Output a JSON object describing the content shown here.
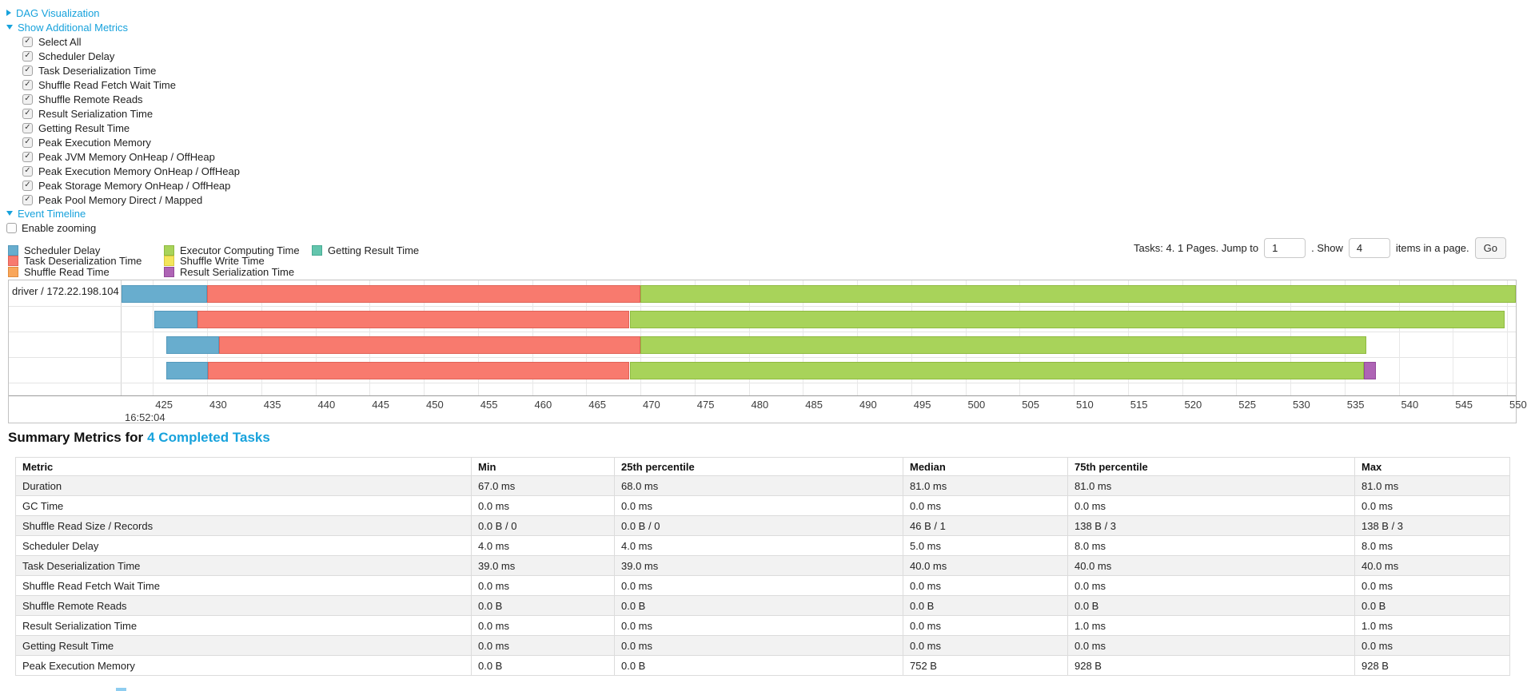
{
  "colors": {
    "link": "#17a2dc",
    "segment": {
      "scheduler_delay": {
        "fill": "#68adce",
        "border": "#5399bc"
      },
      "task_deserialization": {
        "fill": "#f87a6e",
        "border": "#e06257"
      },
      "shuffle_read": {
        "fill": "#f9a65a",
        "border": "#e08c3e"
      },
      "executor_computing": {
        "fill": "#a8d35a",
        "border": "#8fba40"
      },
      "shuffle_write": {
        "fill": "#f3e55c",
        "border": "#d8c93f"
      },
      "result_serialization": {
        "fill": "#ae64b5",
        "border": "#93499a"
      },
      "getting_result": {
        "fill": "#63c5ad",
        "border": "#47ab92"
      }
    }
  },
  "top": {
    "dag": {
      "label": "DAG Visualization",
      "state": "collapsed"
    },
    "additional_metrics": {
      "label": "Show Additional Metrics",
      "state": "expanded"
    },
    "metric_checkboxes": [
      {
        "label": "Select All",
        "checked": true
      },
      {
        "label": "Scheduler Delay",
        "checked": true
      },
      {
        "label": "Task Deserialization Time",
        "checked": true
      },
      {
        "label": "Shuffle Read Fetch Wait Time",
        "checked": true
      },
      {
        "label": "Shuffle Remote Reads",
        "checked": true
      },
      {
        "label": "Result Serialization Time",
        "checked": true
      },
      {
        "label": "Getting Result Time",
        "checked": true
      },
      {
        "label": "Peak Execution Memory",
        "checked": true
      },
      {
        "label": "Peak JVM Memory OnHeap / OffHeap",
        "checked": true
      },
      {
        "label": "Peak Execution Memory OnHeap / OffHeap",
        "checked": true
      },
      {
        "label": "Peak Storage Memory OnHeap / OffHeap",
        "checked": true
      },
      {
        "label": "Peak Pool Memory Direct / Mapped",
        "checked": true
      }
    ],
    "event_timeline": {
      "label": "Event Timeline",
      "state": "expanded"
    },
    "enable_zooming": {
      "label": "Enable zooming",
      "checked": false
    }
  },
  "legend": {
    "columns": [
      [
        {
          "key": "scheduler_delay",
          "label": "Scheduler Delay"
        },
        {
          "key": "task_deserialization",
          "label": "Task Deserialization Time"
        },
        {
          "key": "shuffle_read",
          "label": "Shuffle Read Time"
        }
      ],
      [
        {
          "key": "executor_computing",
          "label": "Executor Computing Time"
        },
        {
          "key": "shuffle_write",
          "label": "Shuffle Write Time"
        },
        {
          "key": "result_serialization",
          "label": "Result Serialization Time"
        }
      ],
      [
        {
          "key": "getting_result",
          "label": "Getting Result Time"
        }
      ]
    ]
  },
  "pagination": {
    "summary": "Tasks: 4. 1 Pages. Jump to",
    "jump_value": "1",
    "between": ". Show",
    "page_size_value": "4",
    "suffix": "items in a page.",
    "go": "Go"
  },
  "chart_data": {
    "type": "timeline",
    "group_label": "driver / 172.22.198.104",
    "time_of_day_label": "16:52:04",
    "axis": {
      "min": 422.1,
      "max": 550.8,
      "tick_start": 425,
      "tick_step": 5,
      "tick_end": 550,
      "unit": "ms"
    },
    "tasks": [
      {
        "segments": [
          {
            "type": "scheduler_delay",
            "start": 422.1,
            "end": 430.0
          },
          {
            "type": "task_deserialization",
            "start": 430.0,
            "end": 470.0
          },
          {
            "type": "executor_computing",
            "start": 470.0,
            "end": 550.8
          }
        ]
      },
      {
        "segments": [
          {
            "type": "scheduler_delay",
            "start": 425.1,
            "end": 429.1
          },
          {
            "type": "task_deserialization",
            "start": 429.1,
            "end": 469.0
          },
          {
            "type": "executor_computing",
            "start": 469.0,
            "end": 549.8
          }
        ]
      },
      {
        "segments": [
          {
            "type": "scheduler_delay",
            "start": 426.2,
            "end": 431.1
          },
          {
            "type": "task_deserialization",
            "start": 431.1,
            "end": 470.0
          },
          {
            "type": "executor_computing",
            "start": 470.0,
            "end": 537.0
          }
        ]
      },
      {
        "segments": [
          {
            "type": "scheduler_delay",
            "start": 426.2,
            "end": 430.1
          },
          {
            "type": "task_deserialization",
            "start": 430.1,
            "end": 469.0
          },
          {
            "type": "executor_computing",
            "start": 469.0,
            "end": 536.8
          },
          {
            "type": "result_serialization",
            "start": 536.8,
            "end": 537.9
          }
        ]
      }
    ]
  },
  "summary_metrics": {
    "title": "Summary Metrics for",
    "title_link": "4 Completed Tasks",
    "columns": [
      "Metric",
      "Min",
      "25th percentile",
      "Median",
      "75th percentile",
      "Max"
    ],
    "rows": [
      {
        "metric": "Duration",
        "values": [
          "67.0 ms",
          "68.0 ms",
          "81.0 ms",
          "81.0 ms",
          "81.0 ms"
        ]
      },
      {
        "metric": "GC Time",
        "values": [
          "0.0 ms",
          "0.0 ms",
          "0.0 ms",
          "0.0 ms",
          "0.0 ms"
        ]
      },
      {
        "metric": "Shuffle Read Size / Records",
        "values": [
          "0.0 B / 0",
          "0.0 B / 0",
          "46 B / 1",
          "138 B / 3",
          "138 B / 3"
        ]
      },
      {
        "metric": "Scheduler Delay",
        "values": [
          "4.0 ms",
          "4.0 ms",
          "5.0 ms",
          "8.0 ms",
          "8.0 ms"
        ]
      },
      {
        "metric": "Task Deserialization Time",
        "values": [
          "39.0 ms",
          "39.0 ms",
          "40.0 ms",
          "40.0 ms",
          "40.0 ms"
        ]
      },
      {
        "metric": "Shuffle Read Fetch Wait Time",
        "values": [
          "0.0 ms",
          "0.0 ms",
          "0.0 ms",
          "0.0 ms",
          "0.0 ms"
        ]
      },
      {
        "metric": "Shuffle Remote Reads",
        "values": [
          "0.0 B",
          "0.0 B",
          "0.0 B",
          "0.0 B",
          "0.0 B"
        ]
      },
      {
        "metric": "Result Serialization Time",
        "values": [
          "0.0 ms",
          "0.0 ms",
          "0.0 ms",
          "1.0 ms",
          "1.0 ms"
        ]
      },
      {
        "metric": "Getting Result Time",
        "values": [
          "0.0 ms",
          "0.0 ms",
          "0.0 ms",
          "0.0 ms",
          "0.0 ms"
        ]
      },
      {
        "metric": "Peak Execution Memory",
        "values": [
          "0.0 B",
          "0.0 B",
          "752 B",
          "928 B",
          "928 B"
        ]
      }
    ]
  }
}
